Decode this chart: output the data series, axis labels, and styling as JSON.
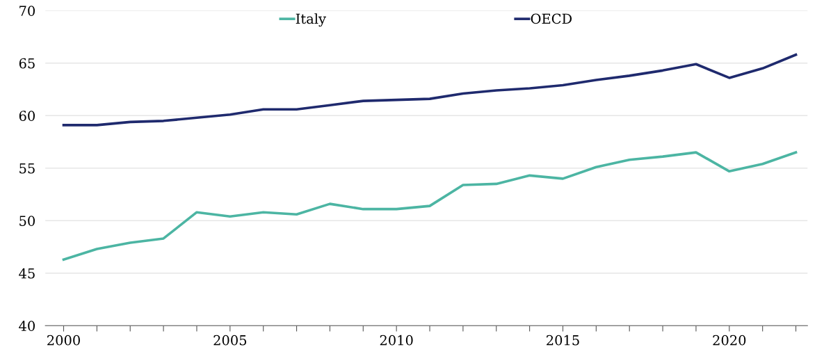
{
  "chart_data": {
    "type": "line",
    "x": [
      2000,
      2001,
      2002,
      2003,
      2004,
      2005,
      2006,
      2007,
      2008,
      2009,
      2010,
      2011,
      2012,
      2013,
      2014,
      2015,
      2016,
      2017,
      2018,
      2019,
      2020,
      2021,
      2022
    ],
    "series": [
      {
        "name": "Italy",
        "color": "#4cb5a3",
        "values": [
          46.3,
          47.3,
          47.9,
          48.3,
          50.8,
          50.4,
          50.8,
          50.6,
          51.6,
          51.1,
          51.1,
          51.4,
          53.4,
          53.5,
          54.3,
          54.0,
          55.1,
          55.8,
          56.1,
          56.5,
          54.7,
          55.4,
          56.5
        ]
      },
      {
        "name": "OECD",
        "color": "#1f2a6e",
        "values": [
          59.1,
          59.1,
          59.4,
          59.5,
          59.8,
          60.1,
          60.6,
          60.6,
          61.0,
          61.4,
          61.5,
          61.6,
          62.1,
          62.4,
          62.6,
          62.9,
          63.4,
          63.8,
          64.3,
          64.9,
          63.6,
          64.5,
          65.8
        ]
      }
    ],
    "xlim": [
      1999.45,
      2022.35
    ],
    "xticks": [
      2000,
      {
        "value": 2001,
        "label": null
      },
      {
        "value": 2002,
        "label": null
      },
      {
        "value": 2003,
        "label": null
      },
      {
        "value": 2004,
        "label": null
      },
      2005,
      {
        "value": 2006,
        "label": null
      },
      {
        "value": 2007,
        "label": null
      },
      {
        "value": 2008,
        "label": null
      },
      {
        "value": 2009,
        "label": null
      },
      2010,
      {
        "value": 2011,
        "label": null
      },
      {
        "value": 2012,
        "label": null
      },
      {
        "value": 2013,
        "label": null
      },
      {
        "value": 2014,
        "label": null
      },
      2015,
      {
        "value": 2016,
        "label": null
      },
      {
        "value": 2017,
        "label": null
      },
      {
        "value": 2018,
        "label": null
      },
      {
        "value": 2019,
        "label": null
      },
      2020,
      {
        "value": 2021,
        "label": null
      },
      {
        "value": 2022,
        "label": null
      }
    ],
    "ylim": [
      40,
      70
    ],
    "yticks": [
      40,
      45,
      50,
      55,
      60,
      65,
      70
    ],
    "grid": "y",
    "legend": "top",
    "marker": "none",
    "line_style": "solid"
  }
}
